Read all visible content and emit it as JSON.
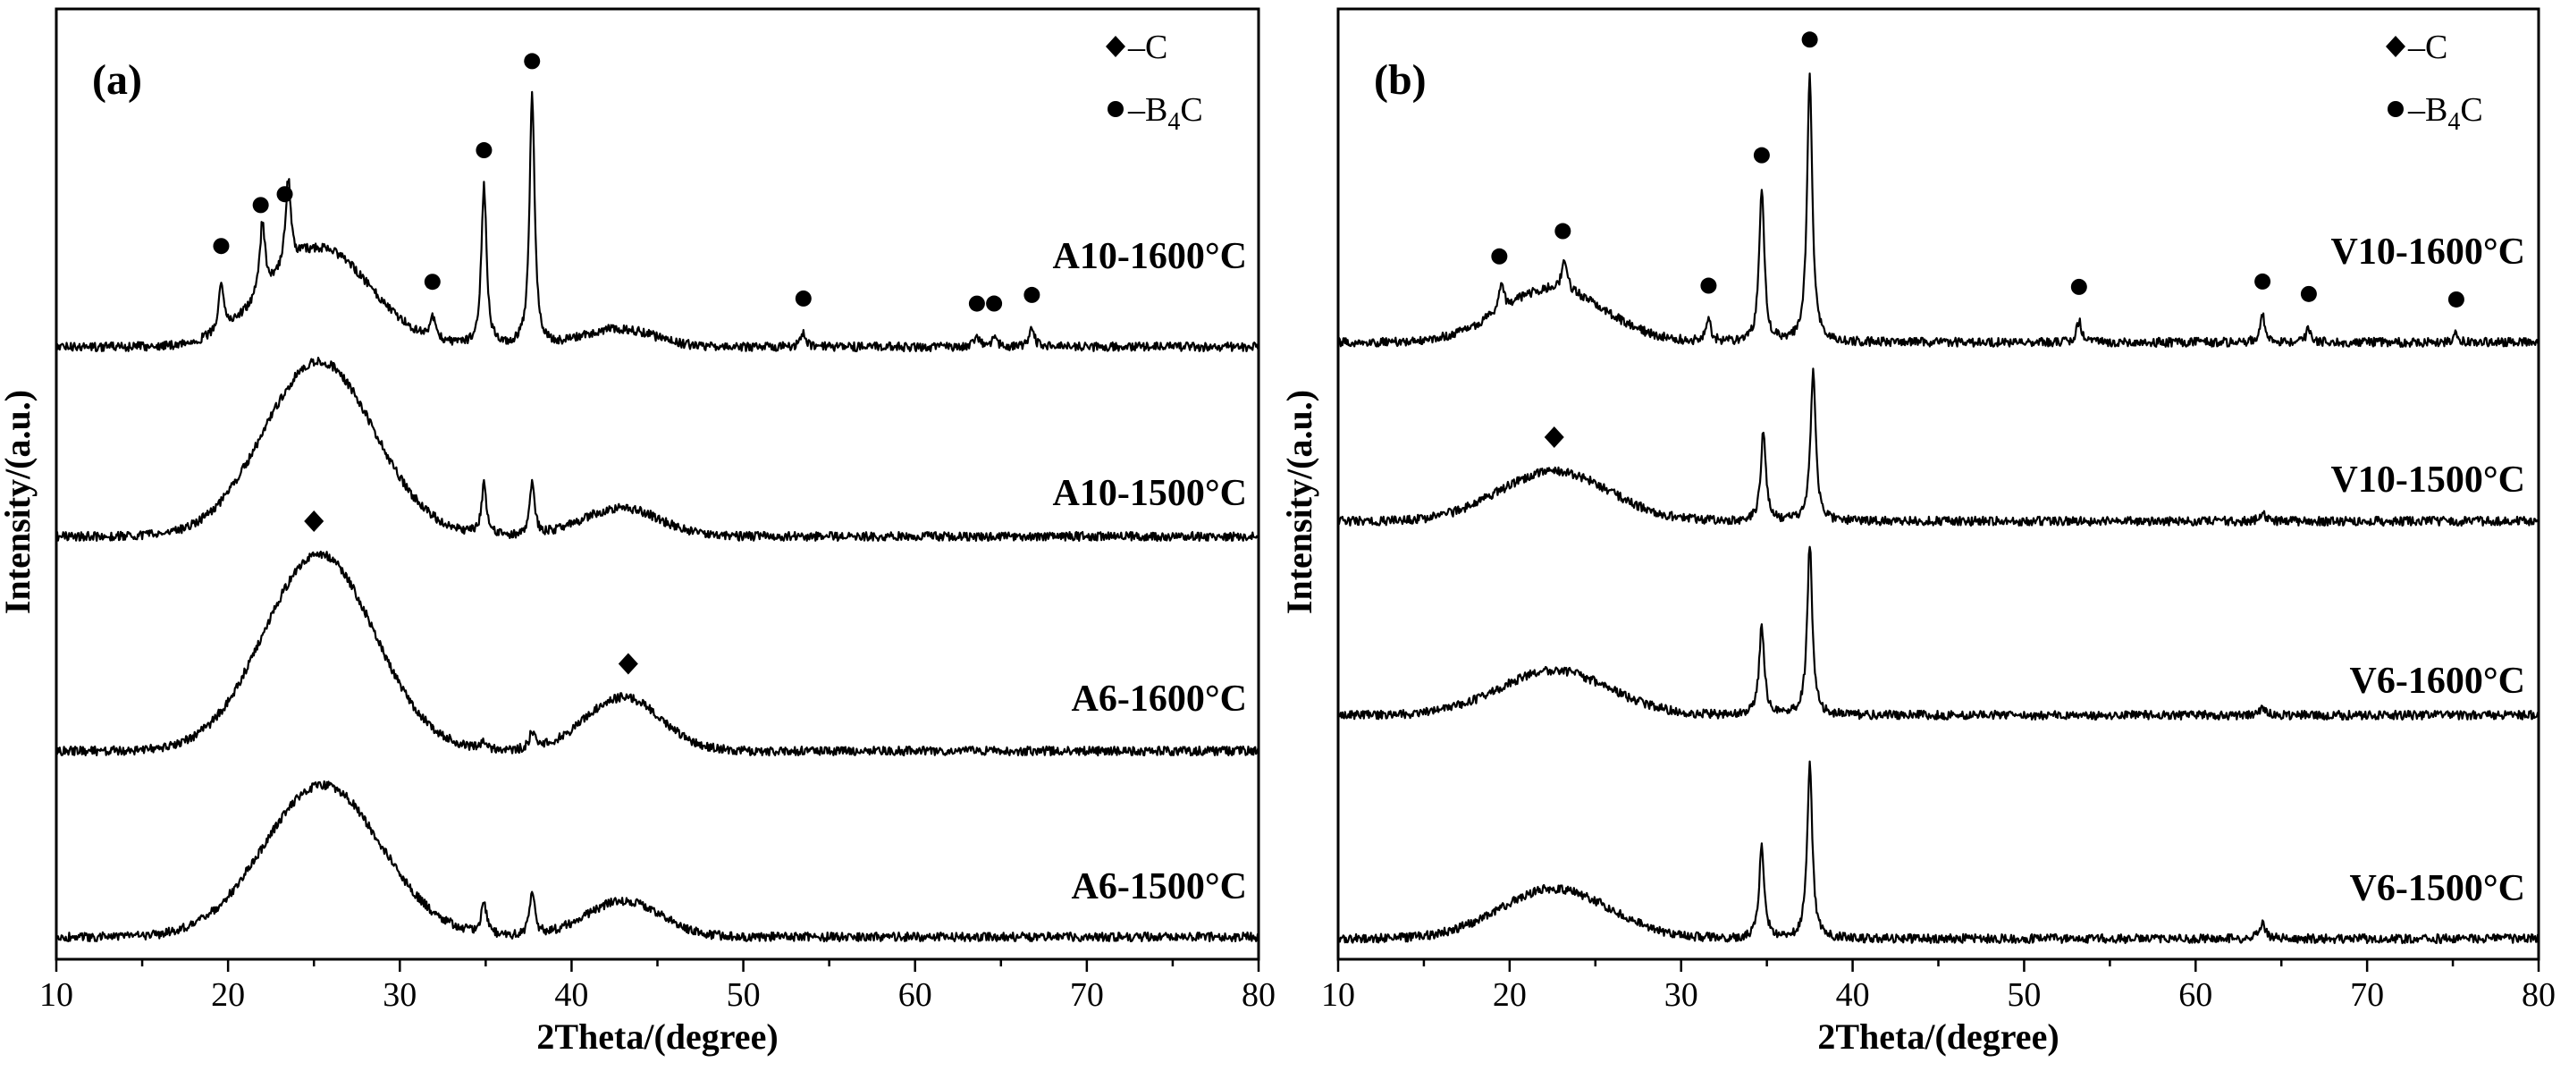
{
  "chart_data": [
    {
      "type": "line",
      "panel": "(a)",
      "xlabel": "2Theta/(degree)",
      "ylabel": "Intensity/(a.u.)",
      "xlim": [
        10,
        80
      ],
      "xticks": [
        10,
        20,
        30,
        40,
        50,
        60,
        70,
        80
      ],
      "yticks": "none",
      "legend": {
        "placement": "top-right",
        "entries": [
          "♦–C",
          "●–B4C"
        ]
      },
      "series": [
        {
          "name": "A10-1600°C",
          "color": "#000000",
          "peaks": [
            {
              "x": 25.3,
              "height": 0.55,
              "width": 3.0,
              "type": "broad",
              "phase": "C"
            },
            {
              "x": 42.8,
              "height": 0.1,
              "width": 2.0,
              "type": "broad",
              "phase": "C"
            },
            {
              "x": 19.6,
              "height": 0.28,
              "type": "sharp",
              "phase": "B4C"
            },
            {
              "x": 22.0,
              "height": 0.4,
              "type": "sharp",
              "phase": "B4C"
            },
            {
              "x": 23.5,
              "height": 0.48,
              "type": "sharp",
              "phase": "B4C"
            },
            {
              "x": 31.9,
              "height": 0.12,
              "type": "sharp",
              "phase": "B4C"
            },
            {
              "x": 34.9,
              "height": 0.9,
              "type": "sharp",
              "phase": "B4C"
            },
            {
              "x": 37.7,
              "height": 1.4,
              "type": "sharp",
              "phase": "B4C"
            },
            {
              "x": 53.5,
              "height": 0.08,
              "type": "sharp",
              "phase": "B4C"
            },
            {
              "x": 63.6,
              "height": 0.05,
              "type": "sharp",
              "phase": "B4C"
            },
            {
              "x": 64.6,
              "height": 0.05,
              "type": "sharp",
              "phase": "B4C"
            },
            {
              "x": 66.8,
              "height": 0.1,
              "type": "sharp",
              "phase": "B4C"
            }
          ]
        },
        {
          "name": "A10-1500°C",
          "color": "#000000",
          "peaks": [
            {
              "x": 25.3,
              "height": 0.98,
              "width": 3.2,
              "type": "broad",
              "phase": "C"
            },
            {
              "x": 42.9,
              "height": 0.16,
              "width": 2.2,
              "type": "broad",
              "phase": "C"
            },
            {
              "x": 34.9,
              "height": 0.28,
              "type": "sharp",
              "phase": "B4C"
            },
            {
              "x": 37.7,
              "height": 0.28,
              "type": "sharp",
              "phase": "B4C"
            }
          ]
        },
        {
          "name": "A6-1600°C",
          "color": "#000000",
          "peaks": [
            {
              "x": 25.3,
              "height": 1.1,
              "width": 3.2,
              "type": "broad",
              "phase": "C"
            },
            {
              "x": 43.0,
              "height": 0.3,
              "width": 2.2,
              "type": "broad",
              "phase": "C"
            },
            {
              "x": 34.9,
              "height": 0.05,
              "type": "sharp",
              "phase": "B4C"
            },
            {
              "x": 37.7,
              "height": 0.1,
              "type": "sharp",
              "phase": "B4C"
            }
          ]
        },
        {
          "name": "A6-1500°C",
          "color": "#000000",
          "peaks": [
            {
              "x": 25.5,
              "height": 0.85,
              "width": 3.4,
              "type": "broad",
              "phase": "C"
            },
            {
              "x": 43.0,
              "height": 0.2,
              "width": 2.2,
              "type": "broad",
              "phase": "C"
            },
            {
              "x": 34.9,
              "height": 0.18,
              "type": "sharp",
              "phase": "B4C"
            },
            {
              "x": 37.7,
              "height": 0.25,
              "type": "sharp",
              "phase": "B4C"
            }
          ]
        }
      ],
      "markers": [
        {
          "x": 19.6,
          "series": "A10-1600°C",
          "phase": "B4C"
        },
        {
          "x": 21.9,
          "series": "A10-1600°C",
          "phase": "B4C"
        },
        {
          "x": 23.3,
          "series": "A10-1600°C",
          "phase": "B4C"
        },
        {
          "x": 31.9,
          "series": "A10-1600°C",
          "phase": "B4C"
        },
        {
          "x": 34.9,
          "series": "A10-1600°C",
          "phase": "B4C"
        },
        {
          "x": 37.7,
          "series": "A10-1600°C",
          "phase": "B4C"
        },
        {
          "x": 53.5,
          "series": "A10-1600°C",
          "phase": "B4C"
        },
        {
          "x": 63.6,
          "series": "A10-1600°C",
          "phase": "B4C"
        },
        {
          "x": 64.6,
          "series": "A10-1600°C",
          "phase": "B4C"
        },
        {
          "x": 66.8,
          "series": "A10-1600°C",
          "phase": "B4C"
        },
        {
          "x": 25.0,
          "series": "A6-1600°C",
          "phase": "C"
        },
        {
          "x": 43.3,
          "series": "A6-1600°C",
          "phase": "C"
        }
      ]
    },
    {
      "type": "line",
      "panel": "(b)",
      "xlabel": "2Theta/(degree)",
      "ylabel": "Intensity/(a.u.)",
      "xlim": [
        10,
        80
      ],
      "xticks": [
        10,
        20,
        30,
        40,
        50,
        60,
        70,
        80
      ],
      "yticks": "none",
      "legend": {
        "placement": "top-right",
        "entries": [
          "♦–C",
          "●–B4C"
        ]
      },
      "series": [
        {
          "name": "V10-1600°C",
          "color": "#000000",
          "peaks": [
            {
              "x": 22.5,
              "height": 0.3,
              "width": 3.0,
              "type": "broad",
              "phase": "C"
            },
            {
              "x": 19.5,
              "height": 0.15,
              "type": "sharp",
              "phase": "B4C"
            },
            {
              "x": 23.2,
              "height": 0.18,
              "type": "sharp",
              "phase": "B4C"
            },
            {
              "x": 31.6,
              "height": 0.12,
              "type": "sharp",
              "phase": "B4C"
            },
            {
              "x": 34.7,
              "height": 0.85,
              "type": "sharp",
              "phase": "B4C"
            },
            {
              "x": 37.5,
              "height": 1.5,
              "type": "sharp",
              "phase": "B4C"
            },
            {
              "x": 53.2,
              "height": 0.12,
              "type": "sharp",
              "phase": "B4C"
            },
            {
              "x": 63.9,
              "height": 0.15,
              "type": "sharp",
              "phase": "B4C"
            },
            {
              "x": 66.6,
              "height": 0.08,
              "type": "sharp",
              "phase": "B4C"
            },
            {
              "x": 75.2,
              "height": 0.05,
              "type": "sharp",
              "phase": "B4C"
            }
          ]
        },
        {
          "name": "V10-1500°C",
          "color": "#000000",
          "peaks": [
            {
              "x": 22.6,
              "height": 0.28,
              "width": 3.2,
              "type": "broad",
              "phase": "C"
            },
            {
              "x": 34.8,
              "height": 0.5,
              "type": "sharp",
              "phase": "B4C"
            },
            {
              "x": 37.7,
              "height": 0.85,
              "type": "sharp",
              "phase": "B4C"
            },
            {
              "x": 63.9,
              "height": 0.05,
              "type": "sharp",
              "phase": "B4C"
            }
          ]
        },
        {
          "name": "V6-1600°C",
          "color": "#000000",
          "peaks": [
            {
              "x": 22.6,
              "height": 0.25,
              "width": 3.2,
              "type": "broad",
              "phase": "C"
            },
            {
              "x": 34.7,
              "height": 0.5,
              "type": "sharp",
              "phase": "B4C"
            },
            {
              "x": 37.5,
              "height": 0.95,
              "type": "sharp",
              "phase": "B4C"
            },
            {
              "x": 63.9,
              "height": 0.05,
              "type": "sharp",
              "phase": "B4C"
            }
          ]
        },
        {
          "name": "V6-1500°C",
          "color": "#000000",
          "peaks": [
            {
              "x": 22.6,
              "height": 0.28,
              "width": 3.2,
              "type": "broad",
              "phase": "C"
            },
            {
              "x": 34.7,
              "height": 0.52,
              "type": "sharp",
              "phase": "B4C"
            },
            {
              "x": 37.5,
              "height": 0.98,
              "type": "sharp",
              "phase": "B4C"
            },
            {
              "x": 63.9,
              "height": 0.1,
              "type": "sharp",
              "phase": "B4C"
            }
          ]
        }
      ],
      "markers": [
        {
          "x": 19.4,
          "series": "V10-1600°C",
          "phase": "B4C"
        },
        {
          "x": 23.1,
          "series": "V10-1600°C",
          "phase": "B4C"
        },
        {
          "x": 31.6,
          "series": "V10-1600°C",
          "phase": "B4C"
        },
        {
          "x": 34.7,
          "series": "V10-1600°C",
          "phase": "B4C"
        },
        {
          "x": 37.5,
          "series": "V10-1600°C",
          "phase": "B4C"
        },
        {
          "x": 53.2,
          "series": "V10-1600°C",
          "phase": "B4C"
        },
        {
          "x": 63.9,
          "series": "V10-1600°C",
          "phase": "B4C"
        },
        {
          "x": 66.6,
          "series": "V10-1600°C",
          "phase": "B4C"
        },
        {
          "x": 75.2,
          "series": "V10-1600°C",
          "phase": "B4C"
        },
        {
          "x": 22.6,
          "series": "V10-1500°C",
          "phase": "C"
        }
      ]
    }
  ]
}
